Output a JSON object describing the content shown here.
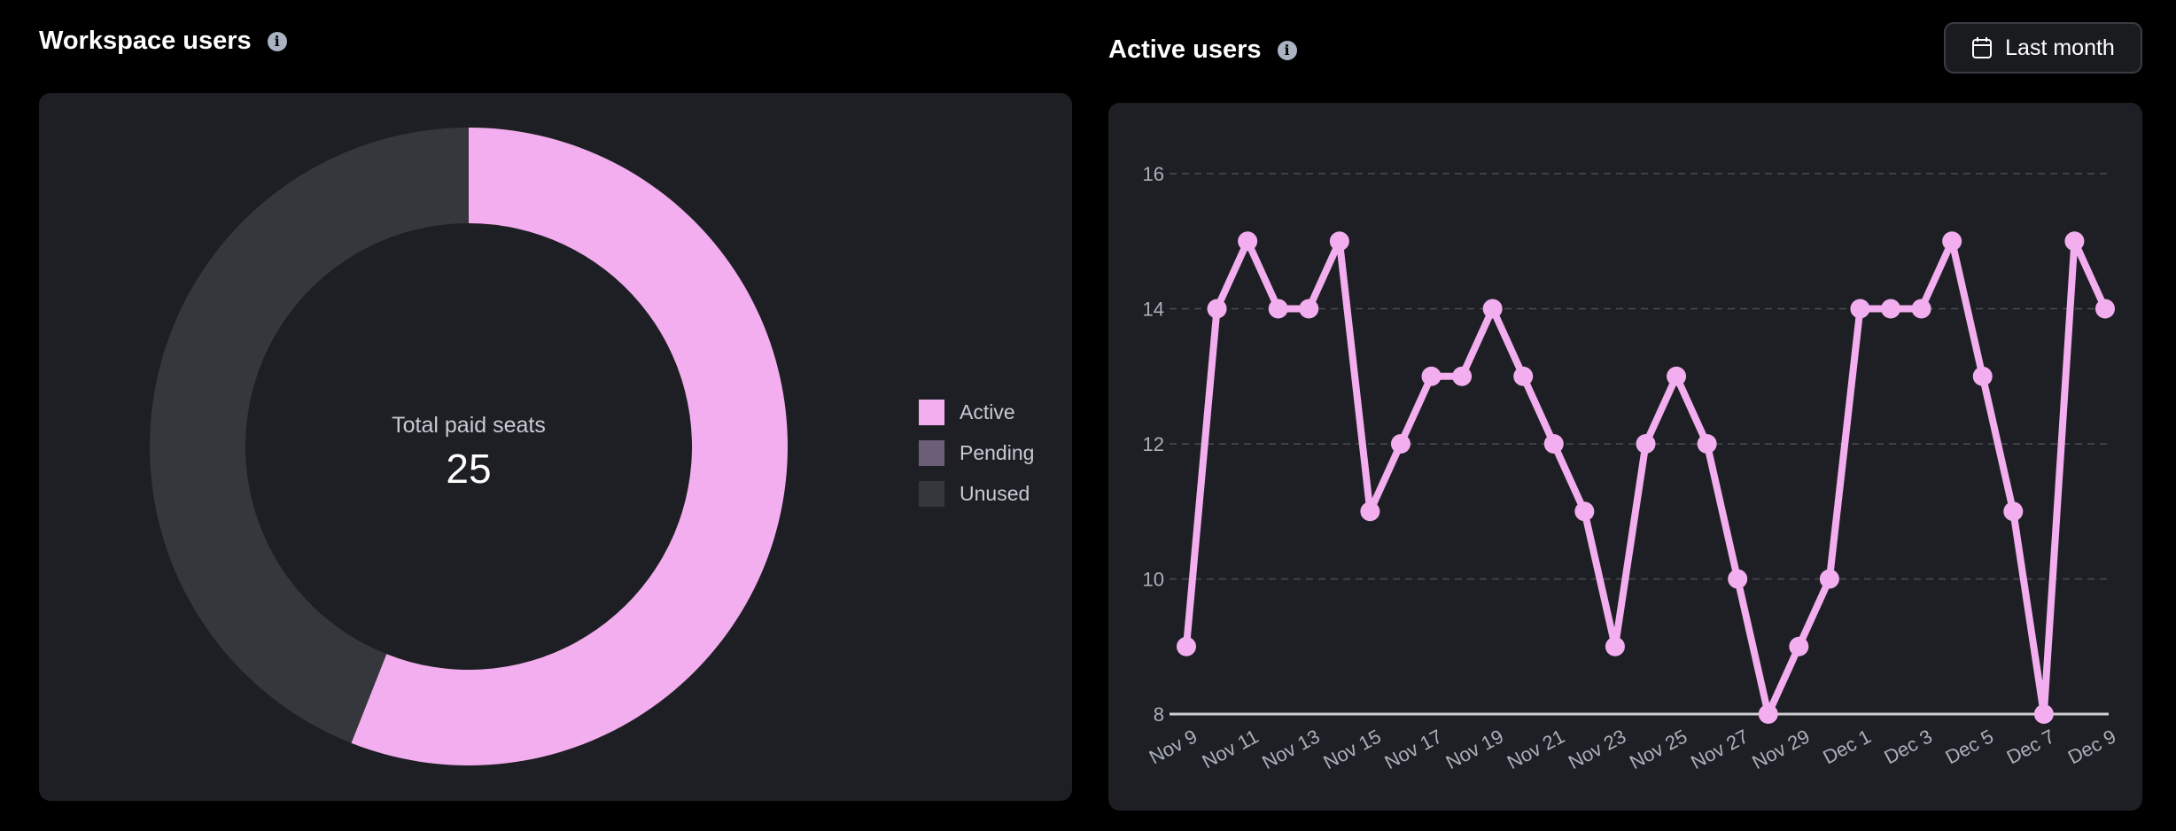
{
  "left": {
    "title": "Workspace users",
    "center_label": "Total paid seats",
    "center_value": "25"
  },
  "right": {
    "title": "Active users",
    "range_button": "Last month"
  },
  "colors": {
    "active": "#f2aeee",
    "pending": "#6c5e77",
    "unused": "#36373d",
    "card": "#1e1f24"
  },
  "chart_data": [
    {
      "type": "pie",
      "title": "Workspace users",
      "categories": [
        "Active",
        "Pending",
        "Unused"
      ],
      "values": [
        14,
        0,
        11
      ],
      "legend": "right"
    },
    {
      "type": "line",
      "title": "Active users",
      "x": [
        "Nov 9",
        "Nov 10",
        "Nov 11",
        "Nov 12",
        "Nov 13",
        "Nov 14",
        "Nov 15",
        "Nov 16",
        "Nov 17",
        "Nov 18",
        "Nov 19",
        "Nov 20",
        "Nov 21",
        "Nov 22",
        "Nov 23",
        "Nov 24",
        "Nov 25",
        "Nov 26",
        "Nov 27",
        "Nov 28",
        "Nov 29",
        "Nov 30",
        "Dec 1",
        "Dec 2",
        "Dec 3",
        "Dec 4",
        "Dec 5",
        "Dec 6",
        "Dec 7",
        "Dec 8",
        "Dec 9"
      ],
      "xticks": [
        "Nov 9",
        "Nov 11",
        "Nov 13",
        "Nov 15",
        "Nov 17",
        "Nov 19",
        "Nov 21",
        "Nov 23",
        "Nov 25",
        "Nov 27",
        "Nov 29",
        "Dec 1",
        "Dec 3",
        "Dec 5",
        "Dec 7",
        "Dec 9"
      ],
      "values": [
        9,
        14,
        15,
        14,
        14,
        15,
        11,
        12,
        13,
        13,
        14,
        13,
        12,
        11,
        9,
        12,
        13,
        12,
        10,
        8,
        9,
        10,
        14,
        14,
        14,
        15,
        13,
        11,
        8,
        15,
        14
      ],
      "yticks": [
        8,
        10,
        12,
        14,
        16
      ],
      "ylim": [
        8,
        16
      ],
      "grid": true
    }
  ]
}
